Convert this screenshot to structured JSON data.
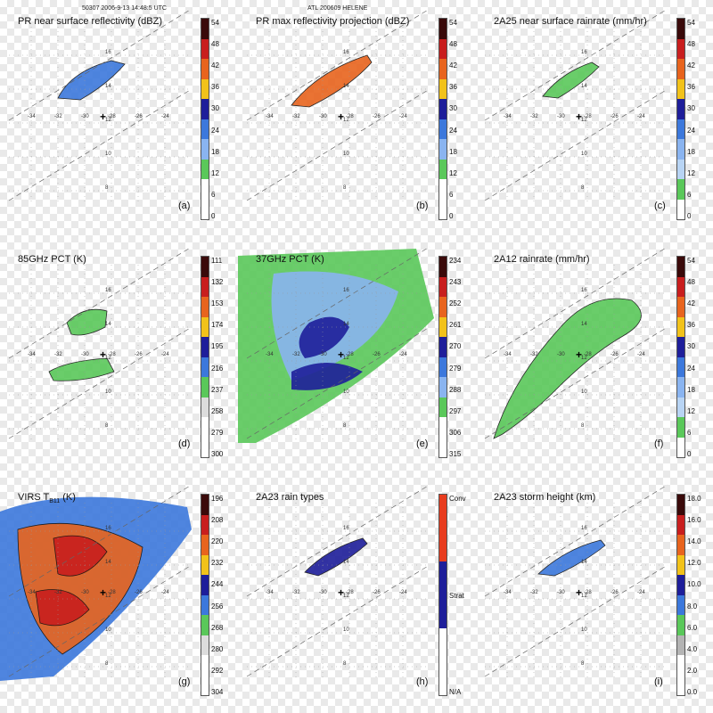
{
  "header": {
    "left": "50307 2006-9-13 14:48:5 UTC",
    "right": "ATL 200609 HELENE"
  },
  "grid": {
    "x_labels": [
      "-34",
      "-32",
      "-30",
      "-28",
      "-26",
      "-24"
    ],
    "y_labels": [
      "16",
      "14",
      "12",
      "10",
      "8"
    ]
  },
  "panels": [
    {
      "title": "PR near surface reflectivity (dBZ)",
      "letter": "(a)",
      "ticks": [
        "54",
        "48",
        "42",
        "36",
        "30",
        "24",
        "18",
        "12",
        "6",
        "0"
      ],
      "colors": [
        "#3a0a0a",
        "#c81e1e",
        "#e8641e",
        "#f2c21a",
        "#1e1e9a",
        "#3c78dc",
        "#8ab4f0",
        "#5ac85a",
        "#ffffff",
        "#ffffff"
      ]
    },
    {
      "title": "PR max reflectivity projection (dBZ)",
      "letter": "(b)",
      "ticks": [
        "54",
        "48",
        "42",
        "36",
        "30",
        "24",
        "18",
        "12",
        "6",
        "0"
      ],
      "colors": [
        "#3a0a0a",
        "#c81e1e",
        "#e8641e",
        "#f2c21a",
        "#1e1e9a",
        "#3c78dc",
        "#8ab4f0",
        "#5ac85a",
        "#ffffff",
        "#ffffff"
      ]
    },
    {
      "title": "2A25 near surface rainrate (mm/hr)",
      "letter": "(c)",
      "ticks": [
        "54",
        "48",
        "42",
        "36",
        "30",
        "24",
        "18",
        "12",
        "6",
        "0"
      ],
      "colors": [
        "#3a0a0a",
        "#c81e1e",
        "#e8641e",
        "#f2c21a",
        "#1e1e9a",
        "#3c78dc",
        "#8ab4f0",
        "#b8d4f4",
        "#5ac85a",
        "#ffffff"
      ]
    },
    {
      "title": "85GHz PCT (K)",
      "letter": "(d)",
      "ticks": [
        "111",
        "132",
        "153",
        "174",
        "195",
        "216",
        "237",
        "258",
        "279",
        "300"
      ],
      "colors": [
        "#3a0a0a",
        "#c81e1e",
        "#e8641e",
        "#f2c21a",
        "#1e1e9a",
        "#3c78dc",
        "#5ac85a",
        "#dcdcdc",
        "#ffffff",
        "#ffffff"
      ]
    },
    {
      "title": "37GHz PCT (K)",
      "letter": "(e)",
      "ticks": [
        "234",
        "243",
        "252",
        "261",
        "270",
        "279",
        "288",
        "297",
        "306",
        "315"
      ],
      "colors": [
        "#3a0a0a",
        "#c81e1e",
        "#e8641e",
        "#f2c21a",
        "#1e1e9a",
        "#3c78dc",
        "#8ab4f0",
        "#5ac85a",
        "#ffffff",
        "#ffffff"
      ]
    },
    {
      "title": "2A12 rainrate (mm/hr)",
      "letter": "(f)",
      "ticks": [
        "54",
        "48",
        "42",
        "36",
        "30",
        "24",
        "18",
        "12",
        "6",
        "0"
      ],
      "colors": [
        "#3a0a0a",
        "#c81e1e",
        "#e8641e",
        "#f2c21a",
        "#1e1e9a",
        "#3c78dc",
        "#8ab4f0",
        "#b8d4f4",
        "#5ac85a",
        "#ffffff"
      ]
    },
    {
      "title": "VIRS T",
      "title_sub": "B11",
      "title_after": " (K)",
      "letter": "(g)",
      "ticks": [
        "196",
        "208",
        "220",
        "232",
        "244",
        "256",
        "268",
        "280",
        "292",
        "304"
      ],
      "colors": [
        "#3a0a0a",
        "#c81e1e",
        "#e8641e",
        "#f2c21a",
        "#1e1e9a",
        "#3c78dc",
        "#5ac85a",
        "#dcdcdc",
        "#ffffff",
        "#ffffff"
      ]
    },
    {
      "title": "2A23 rain types",
      "letter": "(h)",
      "ticks": [
        "Conv",
        "Strat",
        "N/A"
      ],
      "colors": [
        "#e83c1e",
        "#1e1e9a",
        "#ffffff"
      ]
    },
    {
      "title": "2A23 storm height (km)",
      "letter": "(i)",
      "ticks": [
        "18.0",
        "16.0",
        "14.0",
        "12.0",
        "10.0",
        "8.0",
        "6.0",
        "4.0",
        "2.0",
        "0.0"
      ],
      "colors": [
        "#3a0a0a",
        "#c81e1e",
        "#e8641e",
        "#f2c21a",
        "#1e1e9a",
        "#3c78dc",
        "#5ac85a",
        "#b4b4b4",
        "#ffffff",
        "#ffffff"
      ]
    }
  ]
}
